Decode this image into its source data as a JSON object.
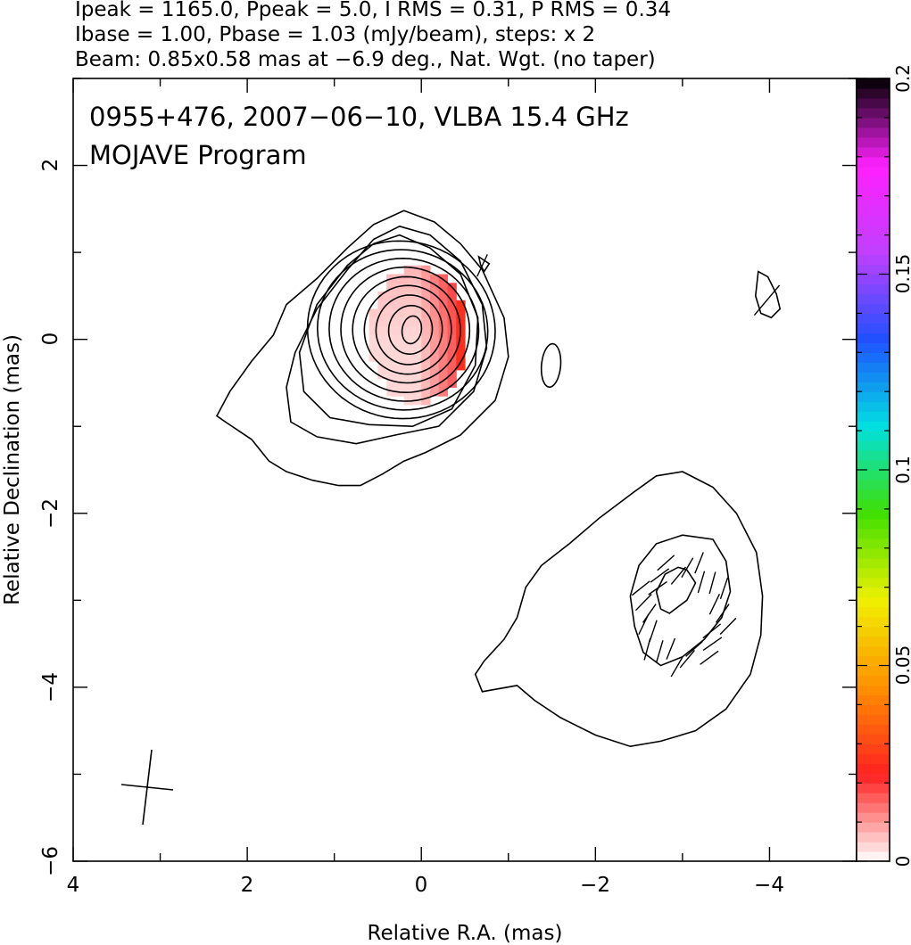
{
  "header_lines": [
    "Ipeak = 1165.0, Ppeak = 5.0, I RMS = 0.31, P RMS = 0.34",
    "Ibase = 1.00, Pbase = 1.03 (mJy/beam), steps: x 2",
    "Beam: 0.85x0.58 mas at −6.9 deg., Nat. Wgt. (no taper)"
  ],
  "title_lines": [
    "0955+476, 2007−06−10, VLBA 15.4 GHz",
    "MOJAVE Program"
  ],
  "chart_data": {
    "type": "heatmap",
    "subtype": "radio map: total intensity contours + fractional polarization color + EVPA ticks",
    "xlabel": "Relative R.A. (mas)",
    "ylabel": "Relative Declination (mas)",
    "xlim": [
      4,
      -5
    ],
    "ylim": [
      -6,
      3
    ],
    "x_ticks": [
      4,
      2,
      0,
      -2,
      -4
    ],
    "x_tick_labels": [
      "4",
      "2",
      "0",
      "−2",
      "−4"
    ],
    "y_ticks": [
      -6,
      -4,
      -2,
      0,
      2
    ],
    "y_tick_labels": [
      "−6",
      "−4",
      "−2",
      "0",
      "2"
    ],
    "colorbar": {
      "range": [
        0,
        0.2
      ],
      "ticks": [
        0,
        0.05,
        0.1,
        0.15,
        0.2
      ],
      "tick_labels": [
        "0",
        "0.05",
        "0.1",
        "0.15",
        "0.2"
      ],
      "colormap": [
        "#ffffff",
        "#ff2020",
        "#ff9000",
        "#f0f000",
        "#40e000",
        "#00e0e0",
        "#2050ff",
        "#c040ff",
        "#ff20ff",
        "#000000"
      ]
    },
    "core": {
      "center": [
        0.18,
        0.07
      ],
      "peak_mJy_per_beam": 1165.0,
      "contour_levels_mJy": [
        1,
        2,
        4,
        8,
        16,
        32,
        64,
        128,
        256,
        512
      ]
    },
    "polarization_patch": {
      "ra_range": [
        0.6,
        -0.65
      ],
      "dec_range": [
        -0.75,
        0.85
      ],
      "frac_pol_range": [
        0.0,
        0.025
      ]
    },
    "jet_feature": {
      "center": [
        -3.0,
        -3.1
      ],
      "evpa_ticks": true
    },
    "beam": {
      "major_mas": 0.85,
      "minor_mas": 0.58,
      "pa_deg": -6.9,
      "center": [
        3.15,
        -5.15
      ]
    }
  }
}
